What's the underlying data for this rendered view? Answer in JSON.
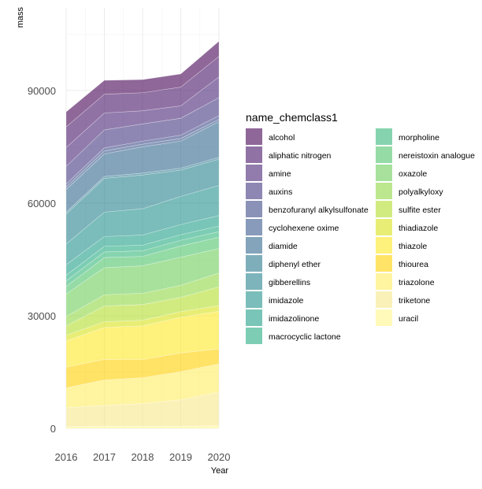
{
  "chart_data": {
    "type": "area",
    "stacked": true,
    "xlabel": "Year",
    "ylabel": "mass",
    "x": [
      2016,
      2017,
      2018,
      2019,
      2020
    ],
    "x_ticks": [
      "2016",
      "2017",
      "2018",
      "2019",
      "2020"
    ],
    "y_ticks": [
      "0",
      "30000",
      "60000",
      "90000"
    ],
    "y_tick_values": [
      0,
      30000,
      60000,
      90000
    ],
    "ylim": [
      0,
      112000
    ],
    "grid": true,
    "legend": {
      "title": "name_chemclass1",
      "position": "right",
      "columns": 2
    },
    "series": [
      {
        "name": "alcohol",
        "color": "#440154",
        "values": [
          4000,
          3700,
          3500,
          3500,
          4000
        ]
      },
      {
        "name": "aliphatic nitrogen",
        "color": "#481467",
        "values": [
          5500,
          5000,
          4800,
          5000,
          5500
        ]
      },
      {
        "name": "amine",
        "color": "#482576",
        "values": [
          5000,
          4500,
          3500,
          3300,
          5500
        ]
      },
      {
        "name": "auxins",
        "color": "#453781",
        "values": [
          4700,
          4800,
          4600,
          4500,
          4800
        ]
      },
      {
        "name": "benzofuranyl alkylsulfonate",
        "color": "#3e4989",
        "values": [
          800,
          800,
          800,
          900,
          1000
        ]
      },
      {
        "name": "cyclohexene oxime",
        "color": "#38588c",
        "values": [
          700,
          800,
          700,
          700,
          600
        ]
      },
      {
        "name": "diamide",
        "color": "#31688e",
        "values": [
          6000,
          6000,
          7000,
          7200,
          9500
        ]
      },
      {
        "name": "diphenyl ether",
        "color": "#2a788e",
        "values": [
          500,
          500,
          500,
          500,
          500
        ]
      },
      {
        "name": "gibberellins",
        "color": "#26828e",
        "values": [
          8000,
          9000,
          9000,
          7000,
          7000
        ]
      },
      {
        "name": "imidazole",
        "color": "#21918c",
        "values": [
          5500,
          6500,
          7000,
          7500,
          8000
        ]
      },
      {
        "name": "imidazolinone",
        "color": "#1f9e89",
        "values": [
          2800,
          2600,
          2700,
          2700,
          2800
        ]
      },
      {
        "name": "macrocyclic lactone",
        "color": "#25ab82",
        "values": [
          1500,
          1500,
          1500,
          1500,
          1500
        ]
      },
      {
        "name": "morpholine",
        "color": "#35b779",
        "values": [
          1500,
          1500,
          1500,
          1500,
          1500
        ]
      },
      {
        "name": "nereistoxin analogue",
        "color": "#4ec36b",
        "values": [
          2000,
          2700,
          2500,
          3000,
          3000
        ]
      },
      {
        "name": "oxazole",
        "color": "#6ccd5a",
        "values": [
          6000,
          7200,
          7300,
          7500,
          6500
        ]
      },
      {
        "name": "polyalkyloxy",
        "color": "#8fd744",
        "values": [
          2500,
          3000,
          3000,
          3200,
          3700
        ]
      },
      {
        "name": "sulfite ester",
        "color": "#b2dd2d",
        "values": [
          2500,
          4200,
          4200,
          3800,
          5000
        ]
      },
      {
        "name": "thiadiazole",
        "color": "#d8e219",
        "values": [
          1500,
          1500,
          1500,
          1500,
          1500
        ]
      },
      {
        "name": "thiazole",
        "color": "#fde725",
        "values": [
          7000,
          8500,
          9000,
          9500,
          10000
        ]
      },
      {
        "name": "thiourea",
        "color": "#ffd000",
        "values": [
          5500,
          5500,
          4800,
          5000,
          4000
        ]
      },
      {
        "name": "triazolone",
        "color": "#ffec60",
        "values": [
          5300,
          6800,
          6900,
          7500,
          7500
        ]
      },
      {
        "name": "triketone",
        "color": "#f6e88b",
        "values": [
          5000,
          5500,
          6000,
          7000,
          9000
        ]
      },
      {
        "name": "uracil",
        "color": "#fff68c",
        "values": [
          500,
          600,
          600,
          600,
          700
        ]
      }
    ]
  }
}
